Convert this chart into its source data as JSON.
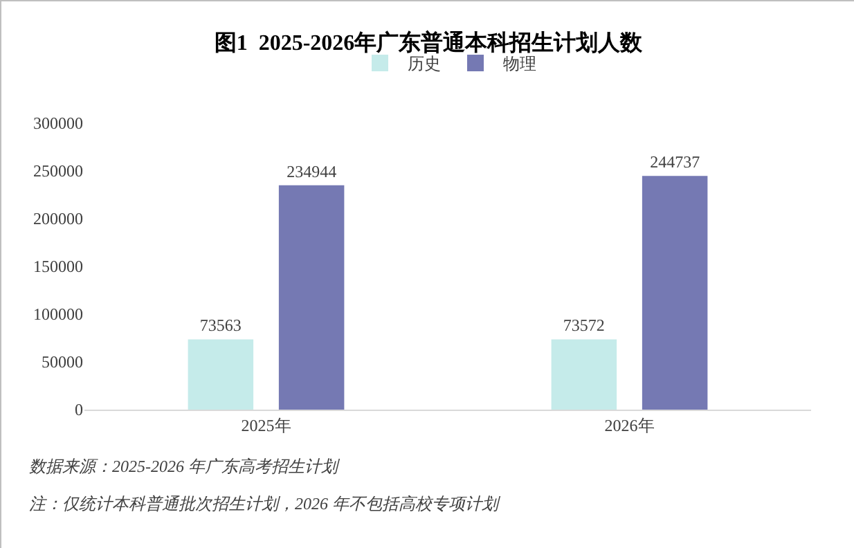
{
  "chart_data": {
    "type": "bar",
    "title": "图1  2025-2026年广东普通本科招生计划人数",
    "categories": [
      "2025年",
      "2026年"
    ],
    "series": [
      {
        "name": "历史",
        "color": "#c5ebea",
        "values": [
          73563,
          73572
        ]
      },
      {
        "name": "物理",
        "color": "#7579b3",
        "values": [
          234944,
          244737
        ]
      }
    ],
    "ylim": [
      0,
      300000
    ],
    "yticks": [
      0,
      50000,
      100000,
      150000,
      200000,
      250000,
      300000
    ],
    "grid": false,
    "legend": "top",
    "data_labels": true,
    "annotations": [
      "数据来源：2025-2026 年广东高考招生计划",
      "注：仅统计本科普通批次招生计划，2026 年不包括高校专项计划"
    ]
  }
}
